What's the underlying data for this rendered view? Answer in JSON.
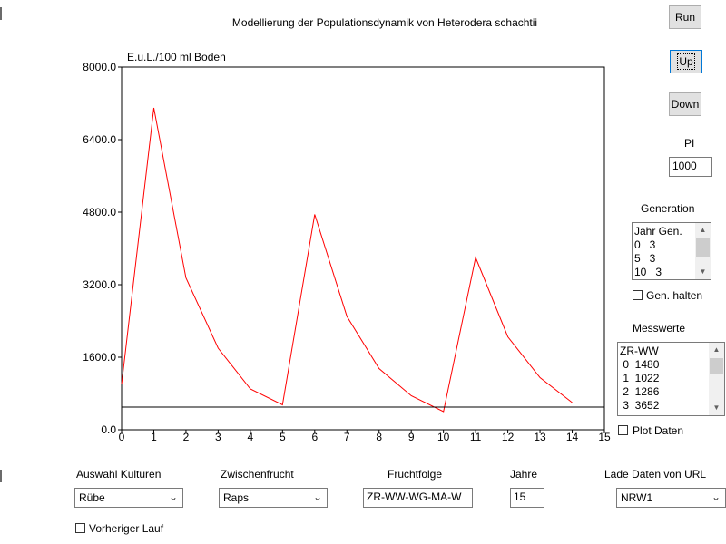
{
  "window": {
    "title": "Modellierung der Populationsdynamik von Heterodera schachtii"
  },
  "buttons": {
    "run": "Run",
    "up": "Up",
    "down": "Down"
  },
  "pi": {
    "label": "PI",
    "value": "1000"
  },
  "generation": {
    "label": "Generation",
    "items": [
      "Jahr Gen.",
      "0   3",
      "5   3",
      "10   3"
    ],
    "hold_label": "Gen. halten",
    "hold_checked": false
  },
  "messwerte": {
    "label": "Messwerte",
    "items": [
      "ZR-WW",
      " 0  1480",
      " 1  1022",
      " 2  1286",
      " 3  3652"
    ],
    "plot_label": "Plot Daten",
    "plot_checked": false
  },
  "controls": {
    "kulturen": {
      "label": "Auswahl Kulturen",
      "value": "Rübe"
    },
    "zwischenfrucht": {
      "label": "Zwischenfrucht",
      "value": "Raps"
    },
    "fruchtfolge": {
      "label": "Fruchtfolge",
      "value": "ZR-WW-WG-MA-W"
    },
    "jahre": {
      "label": "Jahre",
      "value": "15"
    },
    "lade_daten": {
      "label": "Lade Daten von URL",
      "value": "NRW1"
    },
    "vorheriger_lauf": {
      "label": "Vorheriger Lauf",
      "checked": false
    }
  },
  "chart_data": {
    "type": "line",
    "title": "",
    "xlabel": "",
    "ylabel": "E.u.L./100 ml Boden",
    "xlim": [
      0,
      15
    ],
    "ylim": [
      0,
      8000
    ],
    "xticks": [
      0,
      1,
      2,
      3,
      4,
      5,
      6,
      7,
      8,
      9,
      10,
      11,
      12,
      13,
      14,
      15
    ],
    "yticks": [
      0,
      1600,
      3200,
      4800,
      6400,
      8000
    ],
    "ytick_labels": [
      "0.0",
      "1600.0",
      "3200.0",
      "4800.0",
      "6400.0",
      "8000.0"
    ],
    "grid": false,
    "legend": "none",
    "series": [
      {
        "color": "#ff0000",
        "x": [
          0,
          1,
          2,
          3,
          4,
          5,
          6,
          7,
          8,
          9,
          10,
          11,
          12,
          13,
          14
        ],
        "y": [
          1000,
          7100,
          3350,
          1800,
          900,
          550,
          4750,
          2500,
          1350,
          750,
          400,
          3800,
          2050,
          1150,
          600
        ]
      },
      {
        "color": "#000000",
        "x": [
          0,
          15
        ],
        "y": [
          500,
          500
        ]
      }
    ]
  }
}
